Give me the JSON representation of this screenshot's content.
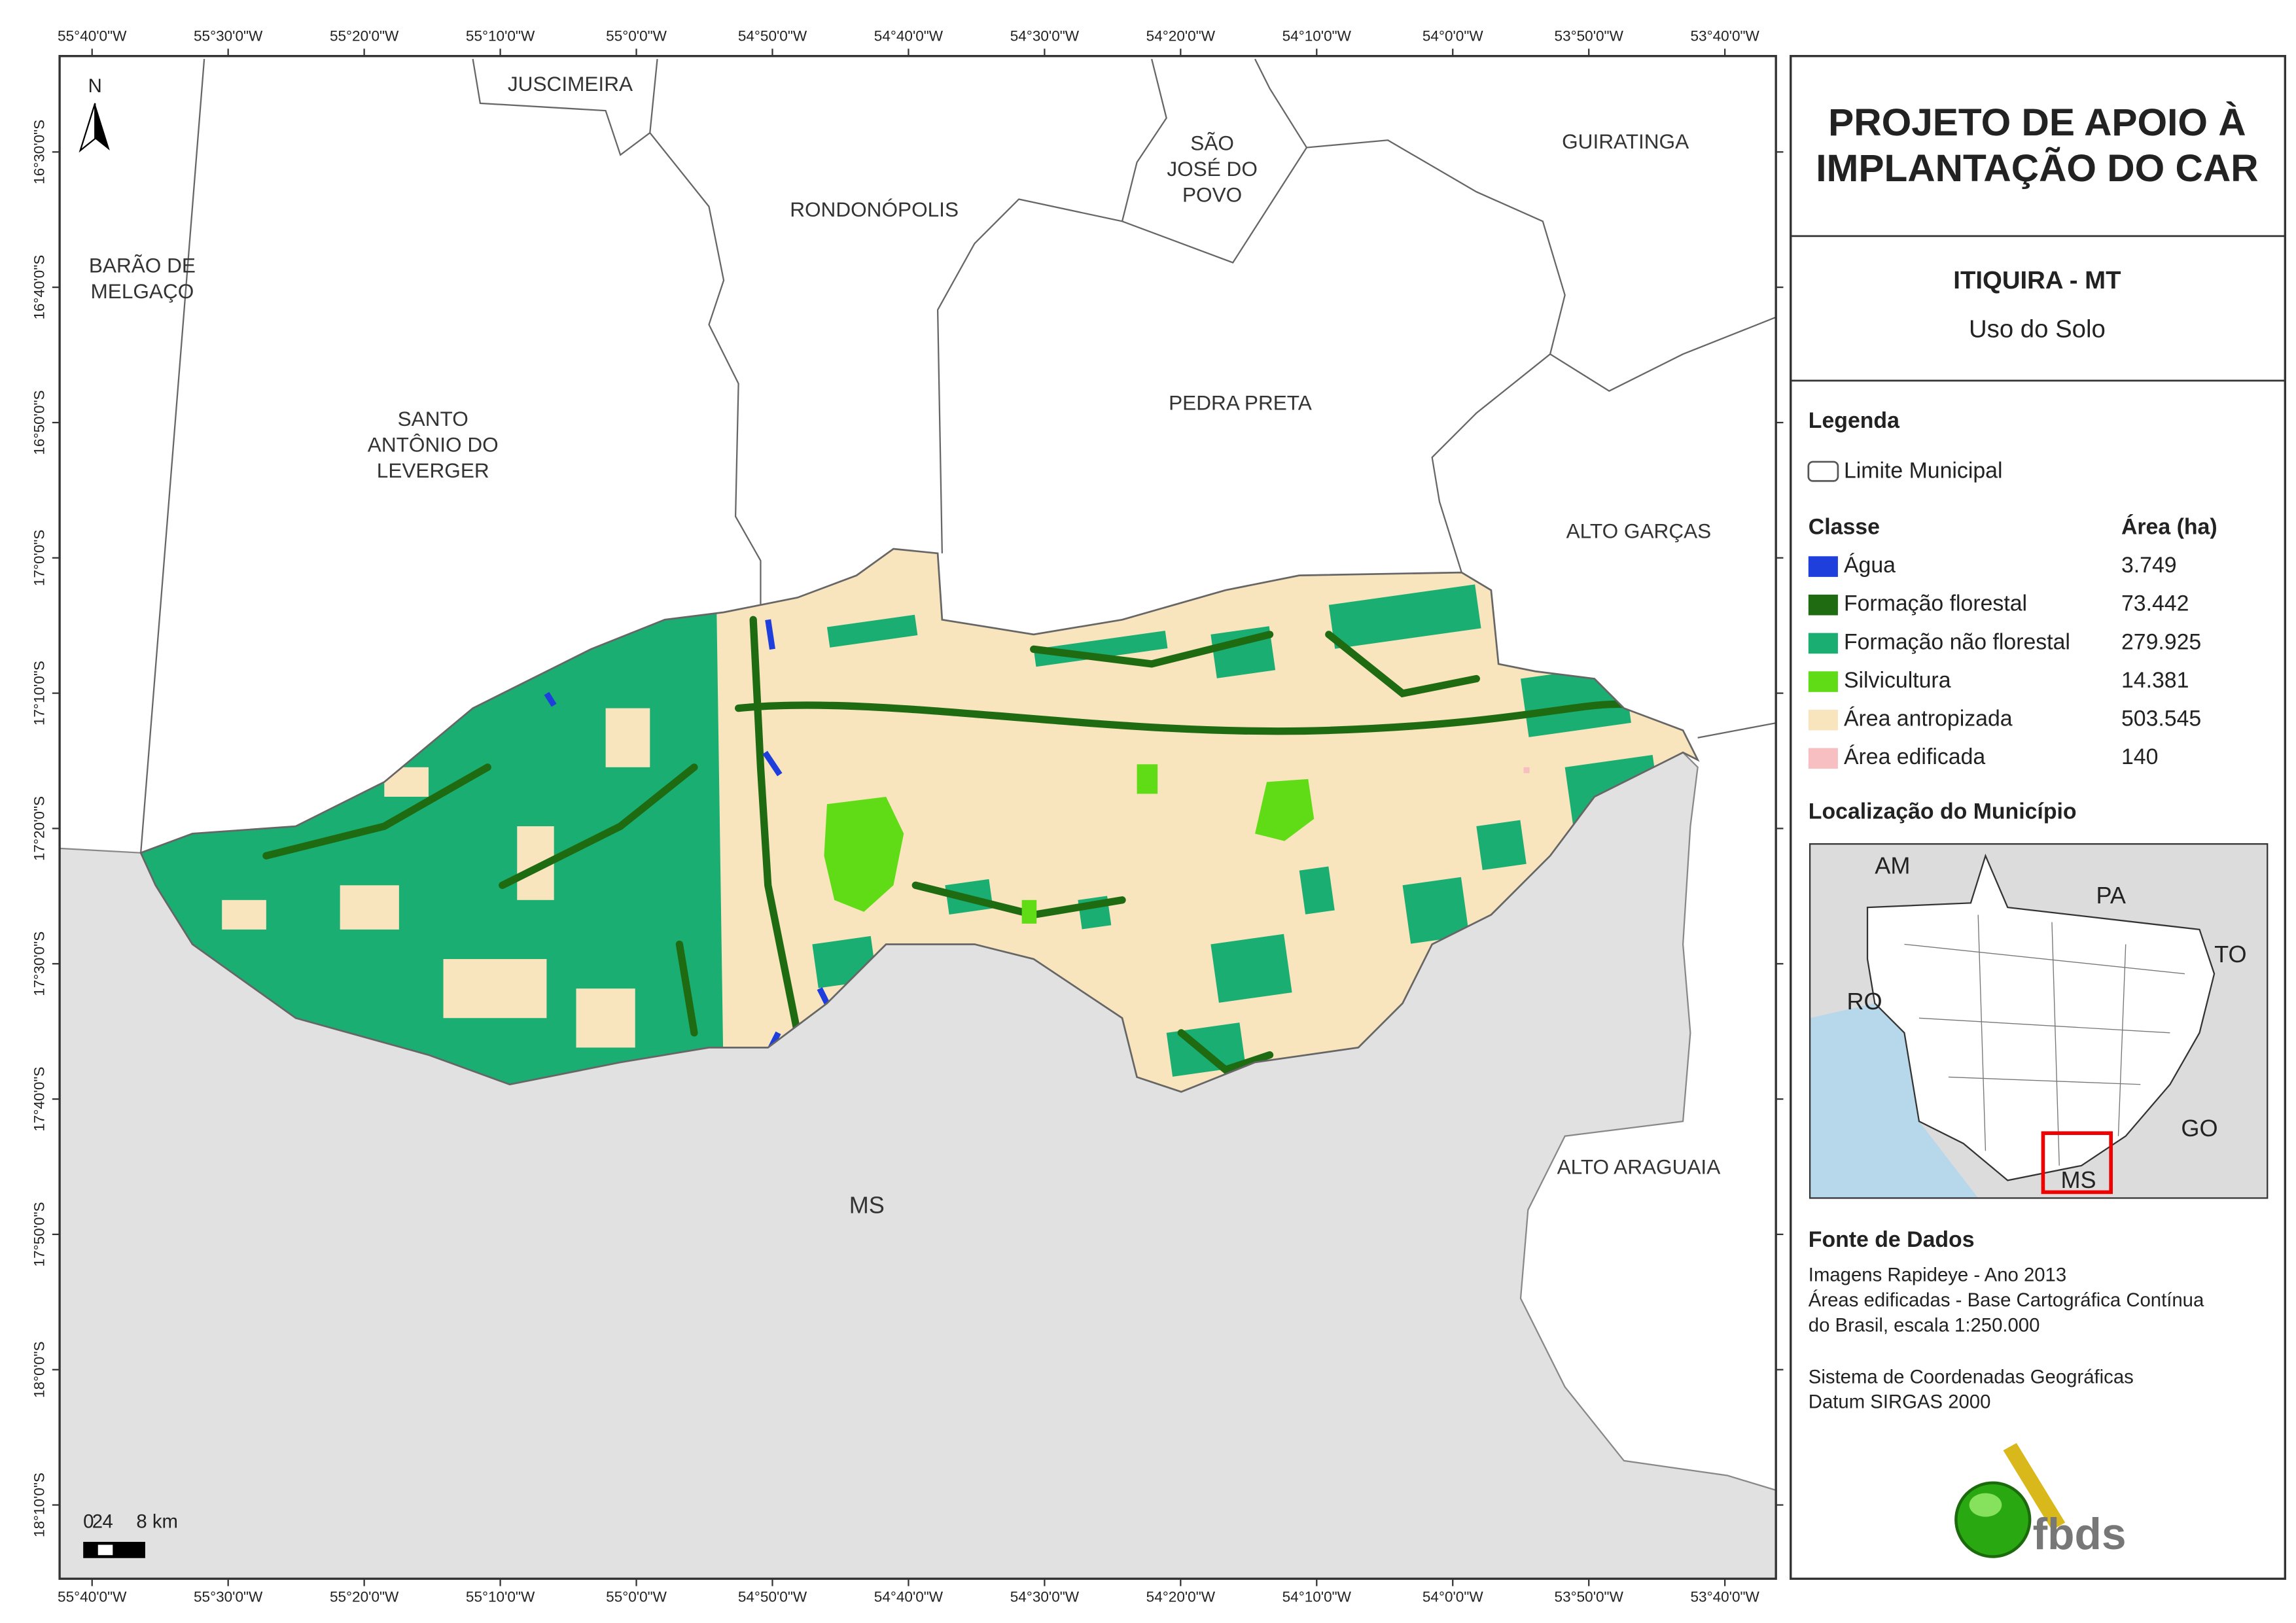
{
  "header": {
    "title_lines": [
      "PROJETO DE APOIO À",
      "IMPLANTAÇÃO DO CAR"
    ],
    "municipality": "ITIQUIRA - MT",
    "theme": "Uso do Solo"
  },
  "legend": {
    "title": "Legenda",
    "boundary": "Limite Municipal",
    "class_header": "Classe",
    "area_header": "Área (ha)",
    "classes": [
      {
        "name": "Água",
        "area": "3.749",
        "color": "#1f3fdc"
      },
      {
        "name": "Formação florestal",
        "area": "73.442",
        "color": "#1f6b12"
      },
      {
        "name": "Formação não florestal",
        "area": "279.925",
        "color": "#1aae72"
      },
      {
        "name": "Silvicultura",
        "area": "14.381",
        "color": "#5fdc16"
      },
      {
        "name": "Área antropizada",
        "area": "503.545",
        "color": "#f8e4bd"
      },
      {
        "name": "Área edificada",
        "area": "140",
        "color": "#f7bfc1"
      }
    ]
  },
  "location": {
    "title": "Localização do Município",
    "labels": [
      "AM",
      "PA",
      "TO",
      "RO",
      "GO",
      "MS"
    ]
  },
  "sources": {
    "title": "Fonte de Dados",
    "lines": [
      "Imagens Rapideye - Ano 2013",
      "Áreas edificadas - Base Cartográfica Contínua",
      "do Brasil, escala 1:250.000",
      "Sistema de Coordenadas Geográficas",
      "Datum SIRGAS 2000"
    ]
  },
  "logo": "fbds",
  "map": {
    "north": "N",
    "scale_labels": [
      "0",
      "2",
      "4",
      "8 km"
    ],
    "lon_labels": [
      "55°40'0\"W",
      "55°30'0\"W",
      "55°20'0\"W",
      "55°10'0\"W",
      "55°0'0\"W",
      "54°50'0\"W",
      "54°40'0\"W",
      "54°30'0\"W",
      "54°20'0\"W",
      "54°10'0\"W",
      "54°0'0\"W",
      "53°50'0\"W",
      "53°40'0\"W"
    ],
    "lat_labels": [
      "16°30'0\"S",
      "16°40'0\"S",
      "16°50'0\"S",
      "17°0'0\"S",
      "17°10'0\"S",
      "17°20'0\"S",
      "17°30'0\"S",
      "17°40'0\"S",
      "17°50'0\"S",
      "18°0'0\"S",
      "18°10'0\"S"
    ],
    "places": [
      [
        "JUSCIMEIRA"
      ],
      [
        "SÃO",
        "JOSÉ DO",
        "POVO"
      ],
      [
        "GUIRATINGA"
      ],
      [
        "RONDONÓPOLIS"
      ],
      [
        "BARÃO DE",
        "MELGAÇO"
      ],
      [
        "SANTO",
        "ANTÔNIO DO",
        "LEVERGER"
      ],
      [
        "PEDRA PRETA"
      ],
      [
        "ALTO GARÇAS"
      ],
      [
        "MS"
      ],
      [
        "ALTO ARAGUAIA"
      ]
    ]
  }
}
